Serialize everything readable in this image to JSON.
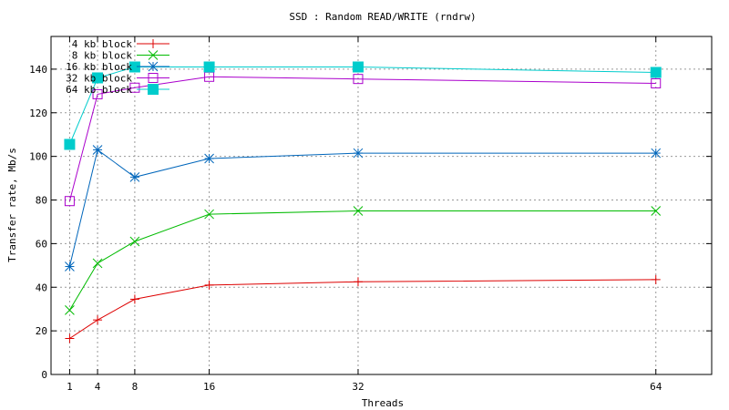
{
  "chart_data": {
    "type": "line",
    "title": "SSD : Random READ/WRITE (rndrw)",
    "xlabel": "Threads",
    "ylabel": "Transfer rate, Mb/s",
    "xlim": [
      -1,
      70
    ],
    "ylim": [
      0,
      155
    ],
    "x_ticks": [
      1,
      4,
      8,
      16,
      32,
      64
    ],
    "y_ticks": [
      0,
      20,
      40,
      60,
      80,
      100,
      120,
      140
    ],
    "grid": true,
    "legend_position": "top-left",
    "x": [
      1,
      4,
      8,
      16,
      32,
      64
    ],
    "series": [
      {
        "name": "4 kb block",
        "color": "#dd0000",
        "marker": "plus",
        "values": [
          16.5,
          25,
          34.5,
          41,
          42.5,
          43.5
        ]
      },
      {
        "name": "8 kb block",
        "color": "#00bb00",
        "marker": "cross",
        "values": [
          29.5,
          51,
          61,
          73.5,
          75,
          75
        ]
      },
      {
        "name": "16 kb block",
        "color": "#0066bb",
        "marker": "star",
        "values": [
          49.5,
          103,
          90.5,
          99,
          101.5,
          101.5
        ]
      },
      {
        "name": "32 kb block",
        "color": "#aa00cc",
        "marker": "square-open",
        "values": [
          79.5,
          128.5,
          131.5,
          136.5,
          135.5,
          133.5
        ]
      },
      {
        "name": "64 kb block",
        "color": "#00cccc",
        "marker": "square-filled",
        "values": [
          105.5,
          136,
          141,
          141,
          141,
          138.5
        ]
      }
    ]
  }
}
